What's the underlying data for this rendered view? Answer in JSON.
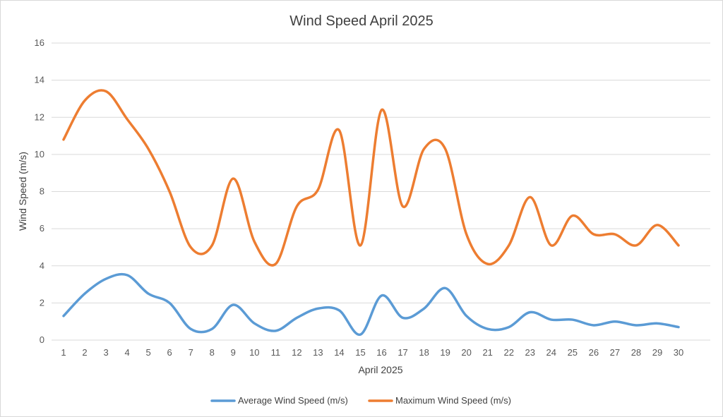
{
  "chart_data": {
    "type": "line",
    "title": "Wind Speed April 2025",
    "xlabel": "April 2025",
    "ylabel": "Wind Speed (m/s)",
    "ylim": [
      0,
      16
    ],
    "yticks": [
      0,
      2,
      4,
      6,
      8,
      10,
      12,
      14,
      16
    ],
    "grid": true,
    "smooth": true,
    "legend_position": "bottom",
    "categories": [
      "1",
      "2",
      "3",
      "4",
      "5",
      "6",
      "7",
      "8",
      "9",
      "10",
      "11",
      "12",
      "13",
      "14",
      "15",
      "16",
      "17",
      "18",
      "19",
      "20",
      "21",
      "22",
      "23",
      "24",
      "25",
      "26",
      "27",
      "28",
      "29",
      "30"
    ],
    "series": [
      {
        "name": "Average Wind Speed (m/s)",
        "color": "#5B9BD5",
        "values": [
          1.3,
          2.5,
          3.3,
          3.5,
          2.5,
          2.0,
          0.6,
          0.6,
          1.9,
          0.9,
          0.5,
          1.2,
          1.7,
          1.6,
          0.3,
          2.4,
          1.2,
          1.7,
          2.8,
          1.3,
          0.6,
          0.7,
          1.5,
          1.1,
          1.1,
          0.8,
          1.0,
          0.8,
          0.9,
          0.7
        ]
      },
      {
        "name": "Maximum Wind Speed (m/s)",
        "color": "#ED7D31",
        "values": [
          10.8,
          12.9,
          13.4,
          11.9,
          10.3,
          8.0,
          5.0,
          5.1,
          8.7,
          5.3,
          4.1,
          7.2,
          8.1,
          11.3,
          5.1,
          12.4,
          7.2,
          10.3,
          10.3,
          5.7,
          4.1,
          5.1,
          7.7,
          5.1,
          6.7,
          5.7,
          5.7,
          5.1,
          6.2,
          5.1
        ]
      }
    ]
  }
}
